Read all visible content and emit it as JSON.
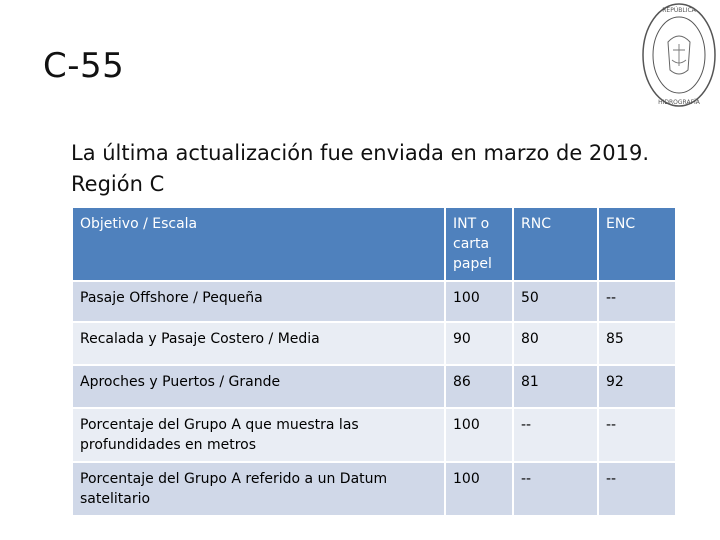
{
  "slide": {
    "title": "C-55",
    "subtitle": "La última actualización fue enviada en marzo de 2019. Región C",
    "seal_text": "REPÚBLICA ARGENTINA HIDROGRAFÍA"
  },
  "table": {
    "headers": [
      "Objetivo / Escala",
      "INT o carta papel",
      "RNC",
      "ENC"
    ],
    "rows": [
      [
        "Pasaje Offshore / Pequeña",
        "100",
        "50",
        "--"
      ],
      [
        "Recalada y Pasaje Costero / Media",
        "90",
        "80",
        "85"
      ],
      [
        "Aproches y Puertos / Grande",
        "86",
        "81",
        "92"
      ],
      [
        "Porcentaje del Grupo A que muestra las profundidades en metros",
        "100",
        "--",
        "--"
      ],
      [
        "Porcentaje del Grupo A referido a un Datum satelitario",
        "100",
        "--",
        "--"
      ]
    ]
  },
  "colors": {
    "header_bg": "#4f81bd",
    "row_odd_bg": "#d0d8e8",
    "row_even_bg": "#e9edf4"
  }
}
